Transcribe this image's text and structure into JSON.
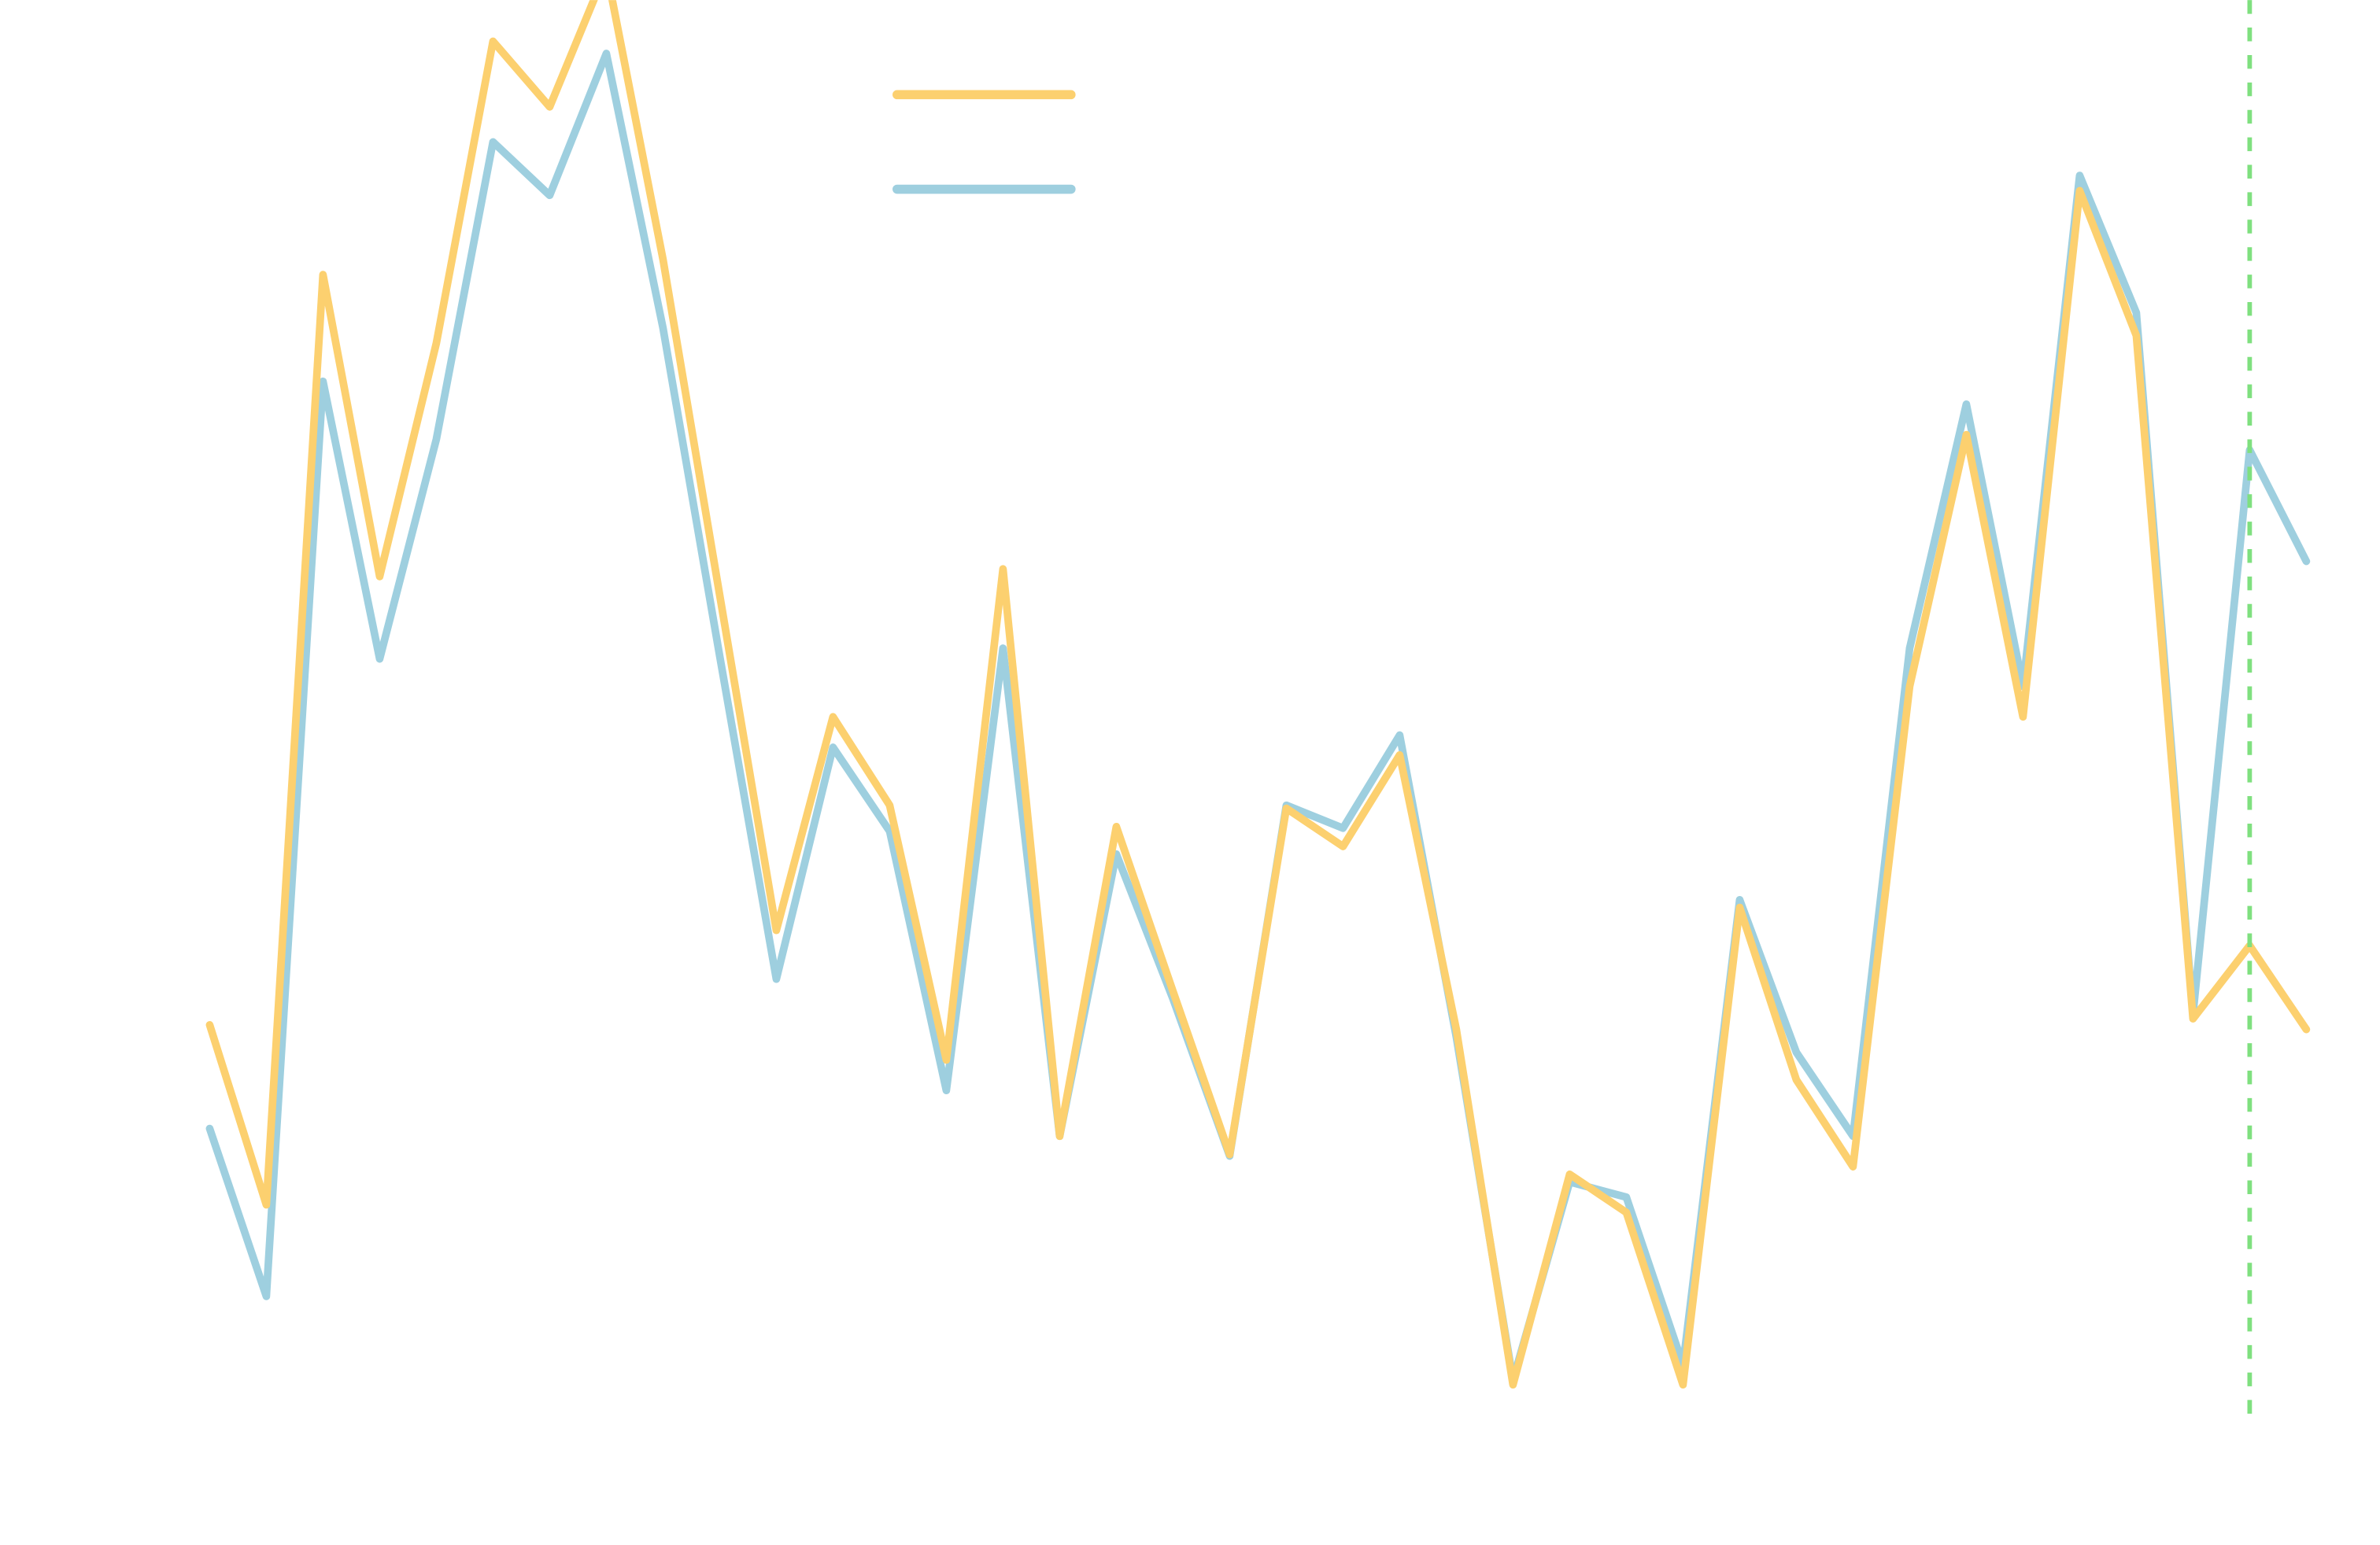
{
  "chart_data": {
    "type": "line",
    "x": [
      0,
      1,
      2,
      3,
      4,
      5,
      6,
      7,
      8,
      9,
      10,
      11,
      12,
      13,
      14,
      15,
      16,
      17,
      18,
      19,
      20,
      21,
      22,
      23,
      24,
      25,
      26,
      27,
      28,
      29,
      30,
      31,
      32,
      33,
      34,
      35,
      36,
      37
    ],
    "xlim": [
      -3.7,
      38.3
    ],
    "ylim": [
      0,
      101
    ],
    "series": [
      {
        "color": "#fcd06f",
        "values": [
          33.8,
          22,
          83,
          63.2,
          78.5,
          98.3,
          94,
          103,
          84,
          62,
          40,
          54,
          48.2,
          31.5,
          63.7,
          26.5,
          46.8,
          36,
          25.3,
          48,
          45.5,
          51.5,
          33.5,
          10.2,
          24,
          21.5,
          10.2,
          41.5,
          30.2,
          24.5,
          56,
          72.5,
          54,
          88.5,
          79,
          34.2,
          39,
          33.5
        ]
      },
      {
        "color": "#9ecfdf",
        "values": [
          27,
          16,
          76,
          57.8,
          72.2,
          91.7,
          88.2,
          97.5,
          79.5,
          58,
          36.8,
          52,
          46.5,
          29.5,
          58.5,
          26.5,
          45,
          35.5,
          25.2,
          48.2,
          46.7,
          52.8,
          33,
          10.5,
          23.5,
          22.5,
          11.5,
          42,
          32,
          26.5,
          58.5,
          74.5,
          56,
          89.5,
          80.5,
          34.5,
          71.5,
          64.2
        ]
      }
    ],
    "vline": {
      "x": 36,
      "color": "#7fe07f"
    }
  }
}
